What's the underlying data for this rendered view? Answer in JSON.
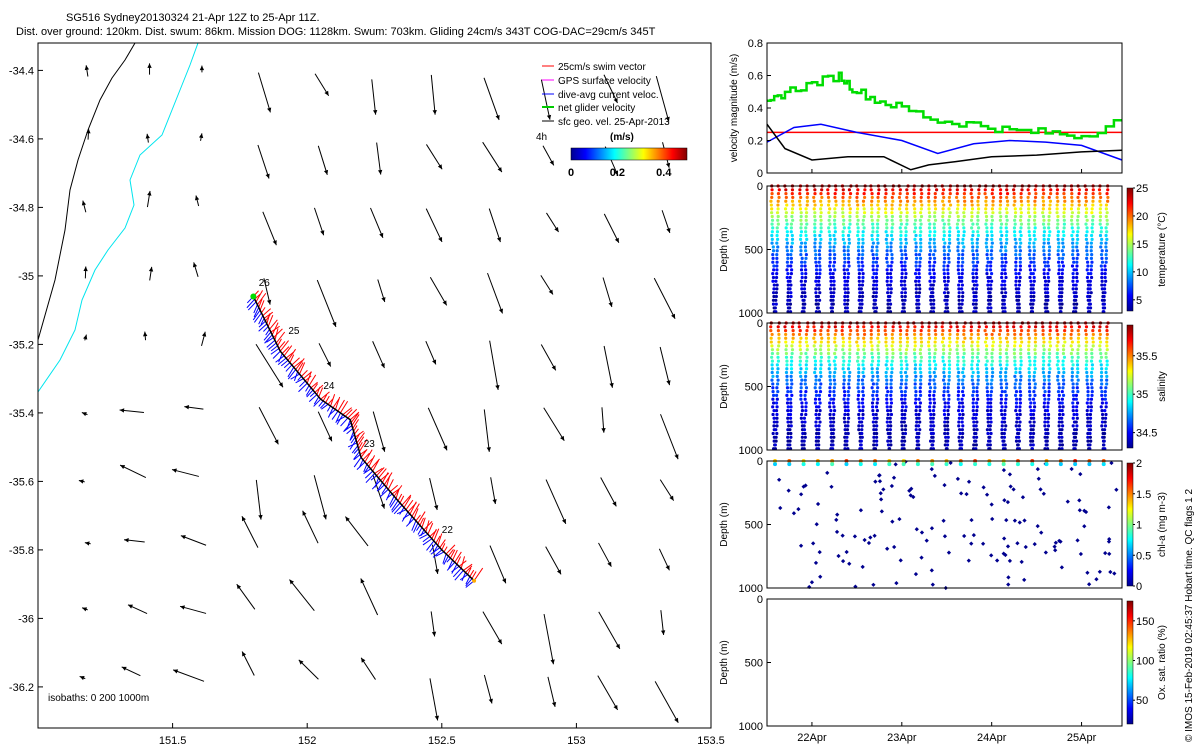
{
  "header": {
    "title": "SG516 Sydney20130324 21-Apr 12Z to 25-Apr 11Z.",
    "stats": "Dist. over ground: 120km. Dist. swum: 86km. Mission DOG: 1128km. Swum: 703km. Gliding 24cm/s 343T COG-DAC=29cm/s 345T"
  },
  "credit": "© IMOS 15-Feb-2019 02:45:37 Hobart time. QC flags 1  2",
  "chart_data": [
    {
      "type": "scatter",
      "panel": "map",
      "x_ticks": [
        "151.5",
        "152",
        "152.5",
        "153",
        "153.5"
      ],
      "y_ticks": [
        "-34.4",
        "-34.6",
        "-34.8",
        "-35",
        "-35.2",
        "-35.4",
        "-35.6",
        "-35.8",
        "-36",
        "-36.2"
      ],
      "xlim": [
        151.0,
        153.5
      ],
      "ylim": [
        -36.32,
        -34.32
      ],
      "legend": {
        "placement": "top-right",
        "entries": [
          {
            "label": "25cm/s swim vector",
            "color": "#ff0000"
          },
          {
            "label": "GPS surface velocity",
            "color": "#ff00ff"
          },
          {
            "label": "dive-avg current veloc.",
            "color": "#0000ff"
          },
          {
            "label": "net glider velocity",
            "color": "#00cc00"
          },
          {
            "label": "sfc geo. vel. 25-Apr-2013",
            "color": "#000000"
          }
        ]
      },
      "duration_label": "4h",
      "colorbar": {
        "title": "(m/s)",
        "ticks": [
          "0",
          "0.2",
          "0.4"
        ],
        "range": [
          0,
          0.5
        ]
      },
      "isobaths_label": "isobaths: 0   200   1000m",
      "track": [
        {
          "lon": 151.8,
          "lat": -35.06
        },
        {
          "lon": 151.9,
          "lat": -35.22
        },
        {
          "lon": 152.05,
          "lat": -35.36
        },
        {
          "lon": 152.16,
          "lat": -35.42
        },
        {
          "lon": 152.2,
          "lat": -35.53
        },
        {
          "lon": 152.33,
          "lat": -35.65
        },
        {
          "lon": 152.5,
          "lat": -35.8
        },
        {
          "lon": 152.62,
          "lat": -35.89
        }
      ],
      "day_labels": [
        {
          "label": "26",
          "lon": 151.82,
          "lat": -35.03
        },
        {
          "label": "25",
          "lon": 151.93,
          "lat": -35.17
        },
        {
          "label": "24",
          "lon": 152.06,
          "lat": -35.33
        },
        {
          "label": "23",
          "lon": 152.21,
          "lat": -35.5
        },
        {
          "label": "22",
          "lon": 152.5,
          "lat": -35.75
        }
      ]
    },
    {
      "type": "line",
      "panel": "velocity",
      "ylabel": "velocity magnitude (m/s)",
      "ylim": [
        0,
        0.8
      ],
      "y_ticks": [
        "0",
        "0.2",
        "0.4",
        "0.6",
        "0.8"
      ],
      "series": [
        {
          "color": "#ff0000",
          "x": [
            21.5,
            25.45
          ],
          "values": [
            0.25,
            0.25
          ]
        },
        {
          "color": "#0000ff",
          "x": [
            21.5,
            21.8,
            22.1,
            22.5,
            23.0,
            23.4,
            23.8,
            24.2,
            24.6,
            25.0,
            25.45
          ],
          "values": [
            0.19,
            0.28,
            0.3,
            0.25,
            0.2,
            0.12,
            0.18,
            0.2,
            0.19,
            0.17,
            0.08
          ]
        },
        {
          "color": "#000000",
          "x": [
            21.5,
            21.7,
            22.0,
            22.4,
            22.8,
            23.1,
            23.3,
            23.6,
            24.0,
            24.5,
            25.0,
            25.45
          ],
          "values": [
            0.3,
            0.15,
            0.08,
            0.1,
            0.1,
            0.02,
            0.05,
            0.07,
            0.1,
            0.11,
            0.13,
            0.14
          ]
        },
        {
          "color": "#00dd00",
          "x": [
            21.5,
            21.7,
            22.0,
            22.3,
            22.45,
            22.7,
            23.0,
            23.4,
            23.8,
            24.2,
            24.6,
            25.0,
            25.45
          ],
          "values": [
            0.42,
            0.5,
            0.55,
            0.6,
            0.52,
            0.45,
            0.4,
            0.32,
            0.3,
            0.26,
            0.25,
            0.23,
            0.33
          ]
        }
      ]
    },
    {
      "type": "scatter",
      "panel": "temperature",
      "ylabel": "Depth (m)",
      "colorbar_label": "temperature (°C)",
      "colorbar_ticks": [
        "5",
        "10",
        "15",
        "20",
        "25"
      ],
      "colorbar_range": [
        3,
        25
      ],
      "y_ticks": [
        "0",
        "500",
        "1000"
      ],
      "ylim": [
        1000,
        0
      ],
      "dives": 24
    },
    {
      "type": "scatter",
      "panel": "salinity",
      "ylabel": "Depth (m)",
      "colorbar_label": "salinity",
      "colorbar_ticks": [
        "34.5",
        "35",
        "35.5"
      ],
      "colorbar_range": [
        34.3,
        35.9
      ],
      "y_ticks": [
        "0",
        "500",
        "1000"
      ],
      "ylim": [
        1000,
        0
      ],
      "dives": 24
    },
    {
      "type": "scatter",
      "panel": "chlorophyll",
      "ylabel": "Depth (m)",
      "colorbar_label": "chl-a (mg m-3)",
      "colorbar_ticks": [
        "0",
        "0.5",
        "1",
        "1.5",
        "2"
      ],
      "colorbar_range": [
        0,
        2
      ],
      "y_ticks": [
        "0",
        "500",
        "1000"
      ],
      "ylim": [
        1000,
        0
      ]
    },
    {
      "type": "scatter",
      "panel": "oxygen",
      "ylabel": "Depth (m)",
      "colorbar_label": "Ox. sat. ratio (%)",
      "colorbar_ticks": [
        "50",
        "100",
        "150"
      ],
      "colorbar_range": [
        20,
        175
      ],
      "y_ticks": [
        "0",
        "500",
        "1000"
      ],
      "ylim": [
        1000,
        0
      ],
      "x_ticks": [
        "22Apr",
        "23Apr",
        "24Apr",
        "25Apr"
      ],
      "x_tick_values": [
        22.0,
        23.0,
        24.0,
        25.0
      ],
      "xlim": [
        21.5,
        25.45
      ]
    }
  ]
}
